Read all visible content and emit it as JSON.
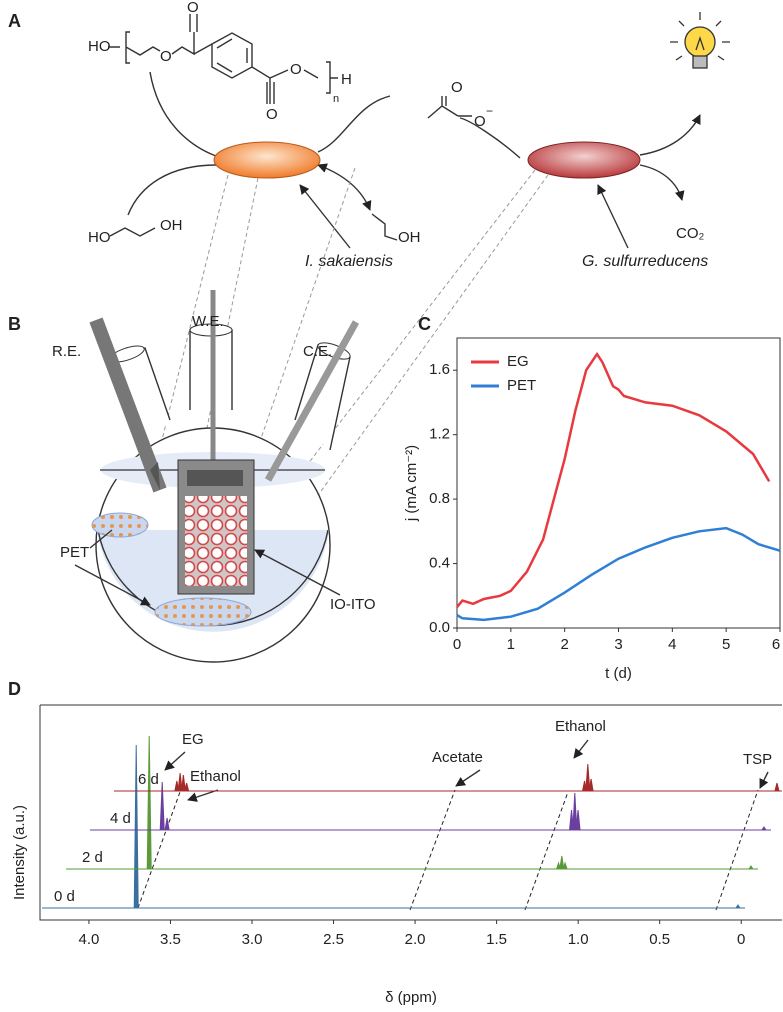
{
  "panel_labels": [
    "A",
    "B",
    "C",
    "D"
  ],
  "scheme": {
    "pet_structure": [
      "HO",
      "O",
      "O",
      "O",
      "O",
      "n",
      "H"
    ],
    "acetate": [
      "O",
      "O",
      "−"
    ],
    "ethylene_glycol": [
      "HO",
      "OH"
    ],
    "ethanol": "OH",
    "co2": "CO₂",
    "organisms": [
      "I. sakaiensis",
      "G. sulfurreducens"
    ]
  },
  "reactor": {
    "electrodes": [
      "R.E.",
      "W.E.",
      "C.E."
    ],
    "substrate": "PET",
    "electrode_material": "IO-ITO"
  },
  "chart_data": [
    {
      "type": "line",
      "x_label": "t (d)",
      "y_label": "j (mA cm⁻²)",
      "xlim": [
        0,
        6
      ],
      "xticks": [
        0,
        1,
        2,
        3,
        4,
        5,
        6
      ],
      "ylim": [
        0,
        1.8
      ],
      "yticks": [
        {
          "value": 0,
          "label": "0.0"
        },
        0.4,
        0.8,
        1.2,
        1.6
      ],
      "legend": "upper-left",
      "series": [
        {
          "name": "EG",
          "color": "#e8393f",
          "x": [
            0,
            0.1,
            0.3,
            0.5,
            0.8,
            1.0,
            1.3,
            1.6,
            1.8,
            2.0,
            2.2,
            2.4,
            2.6,
            2.7,
            2.9,
            3.0,
            3.1,
            3.5,
            4.0,
            4.5,
            5.0,
            5.5,
            5.8
          ],
          "values": [
            0.13,
            0.17,
            0.15,
            0.18,
            0.2,
            0.23,
            0.35,
            0.55,
            0.8,
            1.05,
            1.35,
            1.6,
            1.7,
            1.65,
            1.5,
            1.48,
            1.44,
            1.4,
            1.38,
            1.32,
            1.22,
            1.08,
            0.91
          ]
        },
        {
          "name": "PET",
          "color": "#2f7fd6",
          "x": [
            0,
            0.1,
            0.5,
            1.0,
            1.5,
            2.0,
            2.5,
            3.0,
            3.5,
            4.0,
            4.5,
            5.0,
            5.3,
            5.6,
            6.0
          ],
          "values": [
            0.08,
            0.06,
            0.05,
            0.07,
            0.12,
            0.22,
            0.33,
            0.43,
            0.5,
            0.56,
            0.6,
            0.62,
            0.58,
            0.52,
            0.48
          ]
        }
      ]
    },
    {
      "type": "spectra",
      "x_label": "δ (ppm)",
      "y_label": "Intensity  (a.u.)",
      "xlim": [
        4.3,
        -0.25
      ],
      "xticks": [
        {
          "value": 4,
          "label": "4.0"
        },
        3.5,
        {
          "value": 3,
          "label": "3.0"
        },
        2.5,
        {
          "value": 2,
          "label": "2.0"
        },
        1.5,
        {
          "value": 1,
          "label": "1.0"
        },
        0.5,
        0
      ],
      "annotations": [
        "EG",
        "Ethanol",
        "Acetate",
        "Ethanol",
        "TSP"
      ],
      "series": [
        {
          "name": "0 d",
          "color": "#3b6fa0",
          "x": [
            3.71,
            0.02
          ],
          "values": [
            163,
            3
          ]
        },
        {
          "name": "2 d",
          "color": "#5a9a3a",
          "x": [
            3.71,
            1.2,
            1.18,
            1.16,
            0.02
          ],
          "values": [
            133,
            6,
            13,
            6,
            3
          ]
        },
        {
          "name": "4 d",
          "color": "#6a3fa0",
          "x": [
            3.71,
            3.68,
            1.2,
            1.18,
            1.16,
            0.02
          ],
          "values": [
            48,
            12,
            20,
            37,
            20,
            3
          ]
        },
        {
          "name": "6 d",
          "color": "#a52a2a",
          "x": [
            3.7,
            3.68,
            3.66,
            3.64,
            1.2,
            1.18,
            1.16,
            0.02
          ],
          "values": [
            10,
            18,
            16,
            8,
            10,
            27,
            12,
            8
          ]
        }
      ]
    }
  ]
}
